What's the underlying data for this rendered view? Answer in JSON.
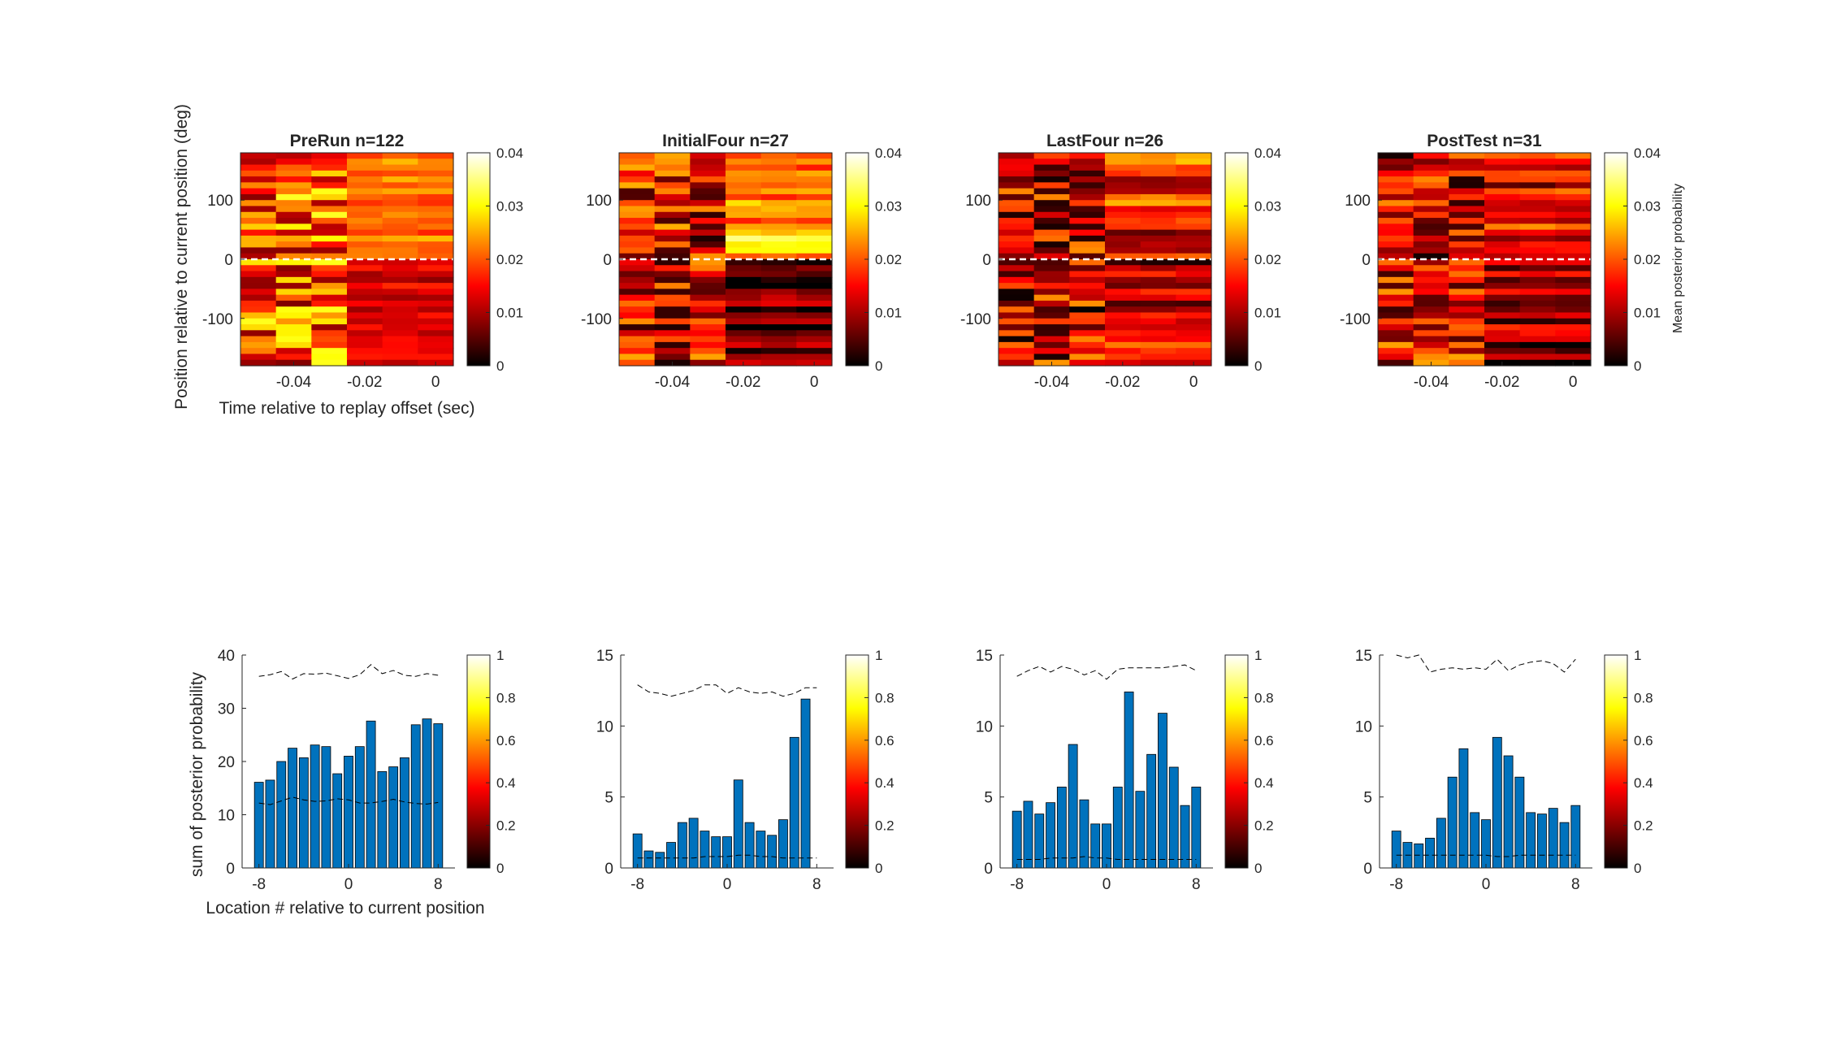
{
  "colors": {
    "bar": "#0072BD",
    "bar_edge": "#000000",
    "axis": "#262626",
    "zero_line": "#ffffff",
    "threshold_line": "#000000"
  },
  "colormap": "hot",
  "heatmap_row": {
    "ylabel": "Position relative to current position (deg)",
    "xlabel": "Time relative to replay offset (sec)",
    "colorbar_label": "Mean posterior probability",
    "colorbar_ticks": [
      "0",
      "0.01",
      "0.02",
      "0.03",
      "0.04"
    ],
    "colorbar_range": [
      0,
      0.04
    ]
  },
  "bar_row": {
    "ylabel": "sum of posterior probability",
    "xlabel": "Location # relative to current position",
    "colorbar_ticks": [
      "0",
      "0.2",
      "0.4",
      "0.6",
      "0.8",
      "1"
    ],
    "colorbar_range": [
      0,
      1
    ]
  },
  "chart_data": [
    {
      "type": "heatmap",
      "title": "PreRun n=122",
      "xlim": [
        -0.055,
        0.005
      ],
      "ylim": [
        -180,
        180
      ],
      "xticks": [
        -0.04,
        -0.02,
        0
      ],
      "xtick_labels": [
        "-0.04",
        "-0.02",
        "0"
      ],
      "yticks": [
        100,
        0,
        -100
      ],
      "ytick_labels": [
        "100",
        "0",
        "-100"
      ],
      "time_bins": [
        -0.05,
        -0.04,
        -0.03,
        -0.02,
        -0.01,
        0
      ],
      "position_bins": 36,
      "value_range": [
        0,
        0.04
      ],
      "zero_line": true,
      "style": {
        "base": 0.0165,
        "early": 0.003,
        "upperLate": 0.0055,
        "lowerLate": -0.0035,
        "lateLen": 0.004
      }
    },
    {
      "type": "heatmap",
      "title": "InitialFour n=27",
      "xlim": [
        -0.055,
        0.005
      ],
      "ylim": [
        -180,
        180
      ],
      "xticks": [
        -0.04,
        -0.02,
        0
      ],
      "xtick_labels": [
        "-0.04",
        "-0.02",
        "0"
      ],
      "yticks": [
        100,
        0,
        -100
      ],
      "ytick_labels": [
        "100",
        "0",
        "-100"
      ],
      "time_bins": [
        -0.05,
        -0.04,
        -0.03,
        -0.02,
        -0.01,
        0
      ],
      "position_bins": 36,
      "value_range": [
        0,
        0.04
      ],
      "zero_line": true,
      "style": {
        "base": 0.0115,
        "early": 0.002,
        "upperLate": 0.014,
        "lowerLate": -0.006,
        "lateLen": 0.008
      }
    },
    {
      "type": "heatmap",
      "title": "LastFour n=26",
      "xlim": [
        -0.055,
        0.005
      ],
      "ylim": [
        -180,
        180
      ],
      "xticks": [
        -0.04,
        -0.02,
        0
      ],
      "xtick_labels": [
        "-0.04",
        "-0.02",
        "0"
      ],
      "yticks": [
        100,
        0,
        -100
      ],
      "ytick_labels": [
        "100",
        "0",
        "-100"
      ],
      "time_bins": [
        -0.05,
        -0.04,
        -0.03,
        -0.02,
        -0.01,
        0
      ],
      "position_bins": 36,
      "value_range": [
        0,
        0.04
      ],
      "zero_line": true,
      "style": {
        "base": 0.011,
        "early": 0.001,
        "upperLate": 0.005,
        "lowerLate": 0.001,
        "lateLen": 0.009
      }
    },
    {
      "type": "heatmap",
      "title": "PostTest n=31",
      "xlim": [
        -0.055,
        0.005
      ],
      "ylim": [
        -180,
        180
      ],
      "xticks": [
        -0.04,
        -0.02,
        0
      ],
      "xtick_labels": [
        "-0.04",
        "-0.02",
        "0"
      ],
      "yticks": [
        100,
        0,
        -100
      ],
      "ytick_labels": [
        "100",
        "0",
        "-100"
      ],
      "time_bins": [
        -0.05,
        -0.04,
        -0.03,
        -0.02,
        -0.01,
        0
      ],
      "position_bins": 36,
      "value_range": [
        0,
        0.04
      ],
      "zero_line": true,
      "style": {
        "base": 0.01,
        "early": 0.003,
        "upperLate": 0.004,
        "lowerLate": -0.002,
        "lateLen": 0.009
      }
    },
    {
      "type": "bar",
      "x": [
        -8,
        -7,
        -6,
        -5,
        -4,
        -3,
        -2,
        -1,
        0,
        1,
        2,
        3,
        4,
        5,
        6,
        7,
        8
      ],
      "values": [
        16.1,
        16.5,
        20.0,
        22.5,
        20.7,
        23.1,
        22.8,
        17.7,
        21.0,
        22.8,
        27.6,
        18.1,
        19.0,
        20.7,
        26.9,
        28.0,
        27.1
      ],
      "upper_dashed": [
        36.0,
        36.3,
        36.9,
        35.5,
        36.5,
        36.4,
        36.6,
        36.1,
        35.6,
        36.3,
        38.2,
        36.5,
        37.1,
        36.2,
        36.0,
        36.5,
        36.2
      ],
      "lower_dashed": [
        12.2,
        11.9,
        12.6,
        13.3,
        12.8,
        12.5,
        12.6,
        13.0,
        12.8,
        12.2,
        12.2,
        12.5,
        12.9,
        12.4,
        12.1,
        12.0,
        12.3
      ],
      "xlim": [
        -9.5,
        9.5
      ],
      "ylim": [
        0,
        40
      ],
      "xticks": [
        -8,
        0,
        8
      ],
      "yticks": [
        0,
        10,
        20,
        30,
        40
      ]
    },
    {
      "type": "bar",
      "x": [
        -8,
        -7,
        -6,
        -5,
        -4,
        -3,
        -2,
        -1,
        0,
        1,
        2,
        3,
        4,
        5,
        6,
        7,
        8
      ],
      "values": [
        2.4,
        1.2,
        1.1,
        1.8,
        3.2,
        3.5,
        2.6,
        2.2,
        2.2,
        6.2,
        3.2,
        2.6,
        2.3,
        3.4,
        9.2,
        11.9,
        0
      ],
      "upper_dashed": [
        12.9,
        12.4,
        12.3,
        12.1,
        12.3,
        12.5,
        12.9,
        12.9,
        12.3,
        12.7,
        12.4,
        12.3,
        12.4,
        12.1,
        12.3,
        12.7,
        12.7
      ],
      "lower_dashed": [
        0.7,
        0.7,
        0.7,
        0.7,
        0.7,
        0.7,
        0.8,
        0.8,
        0.8,
        0.9,
        0.9,
        0.8,
        0.8,
        0.7,
        0.7,
        0.7,
        0.7
      ],
      "xlim": [
        -9.5,
        9.5
      ],
      "ylim": [
        0,
        15
      ],
      "xticks": [
        -8,
        0,
        8
      ],
      "yticks": [
        0,
        5,
        10,
        15
      ]
    },
    {
      "type": "bar",
      "x": [
        -8,
        -7,
        -6,
        -5,
        -4,
        -3,
        -2,
        -1,
        0,
        1,
        2,
        3,
        4,
        5,
        6,
        7,
        8
      ],
      "values": [
        4.0,
        4.7,
        3.8,
        4.6,
        5.7,
        8.7,
        4.8,
        3.1,
        3.1,
        5.7,
        12.4,
        5.4,
        8.0,
        10.9,
        7.1,
        4.4,
        5.7
      ],
      "upper_dashed": [
        13.5,
        13.9,
        14.2,
        13.8,
        14.2,
        14.0,
        13.6,
        13.9,
        13.3,
        14.0,
        14.1,
        14.1,
        14.1,
        14.1,
        14.2,
        14.3,
        13.9
      ],
      "lower_dashed": [
        0.6,
        0.6,
        0.6,
        0.7,
        0.7,
        0.7,
        0.8,
        0.7,
        0.7,
        0.6,
        0.6,
        0.6,
        0.6,
        0.6,
        0.6,
        0.6,
        0.6
      ],
      "xlim": [
        -9.5,
        9.5
      ],
      "ylim": [
        0,
        15
      ],
      "xticks": [
        -8,
        0,
        8
      ],
      "yticks": [
        0,
        5,
        10,
        15
      ]
    },
    {
      "type": "bar",
      "x": [
        -8,
        -7,
        -6,
        -5,
        -4,
        -3,
        -2,
        -1,
        0,
        1,
        2,
        3,
        4,
        5,
        6,
        7,
        8
      ],
      "values": [
        2.6,
        1.8,
        1.7,
        2.1,
        3.5,
        6.4,
        8.4,
        3.9,
        3.4,
        9.2,
        7.9,
        6.4,
        3.9,
        3.8,
        4.2,
        3.2,
        4.4
      ],
      "upper_dashed": [
        15.0,
        14.8,
        15.0,
        13.8,
        14.0,
        14.1,
        14.0,
        14.1,
        14.0,
        14.7,
        13.9,
        14.3,
        14.5,
        14.6,
        14.4,
        13.8,
        14.7
      ],
      "lower_dashed": [
        0.9,
        0.9,
        0.9,
        0.9,
        0.9,
        0.9,
        0.9,
        0.9,
        0.9,
        0.8,
        0.8,
        0.9,
        0.9,
        0.9,
        0.9,
        0.9,
        0.9
      ],
      "xlim": [
        -9.5,
        9.5
      ],
      "ylim": [
        0,
        15
      ],
      "xticks": [
        -8,
        0,
        8
      ],
      "yticks": [
        0,
        5,
        10,
        15
      ]
    }
  ]
}
